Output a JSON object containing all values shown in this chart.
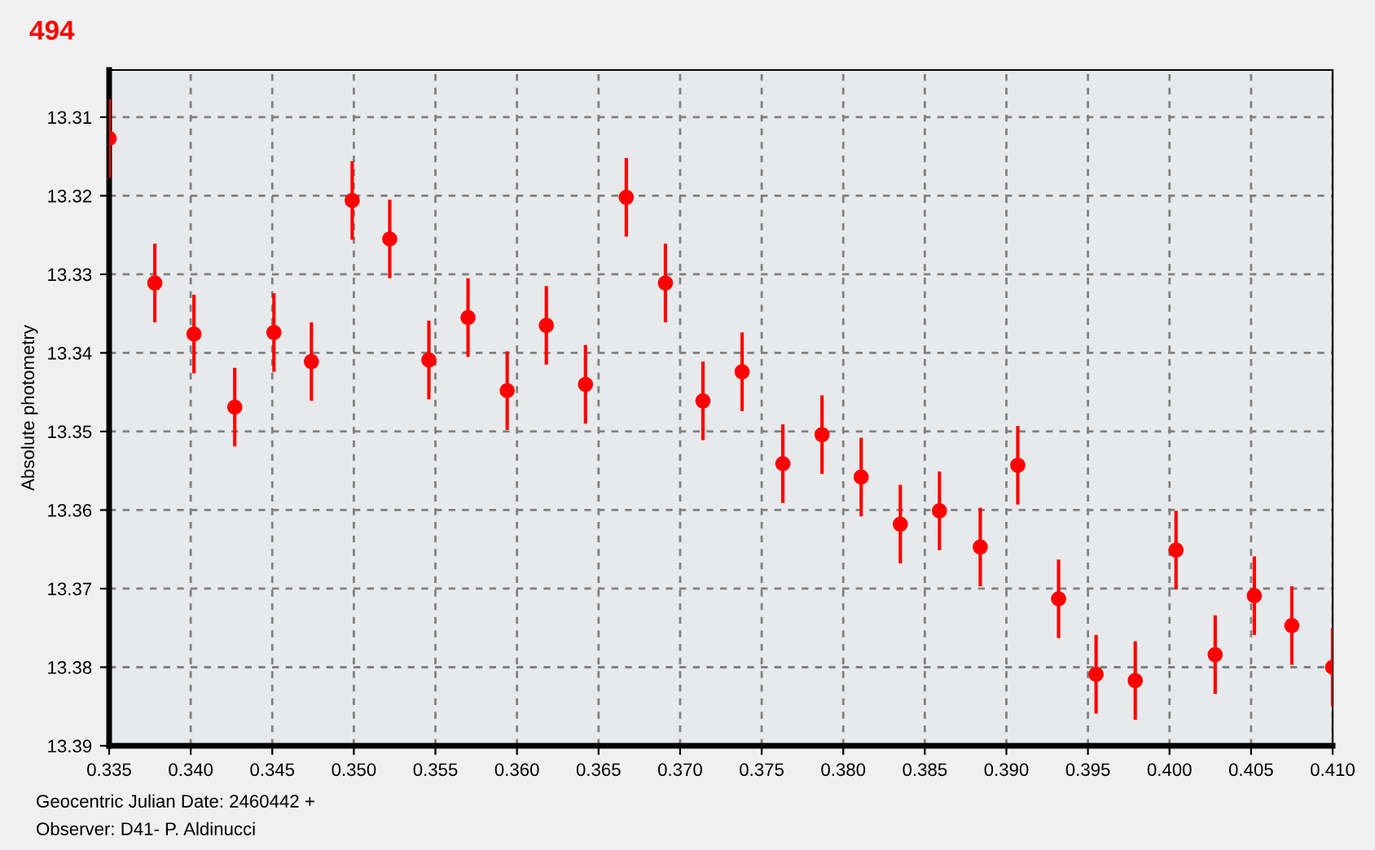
{
  "chart_data": {
    "type": "scatter",
    "title": "494",
    "ylabel": "Absolute photometry",
    "annotations": [
      "Geocentric Julian Date: 2460442 +",
      "Observer: D41- P. Aldinucci"
    ],
    "x": [
      0.335,
      0.3378,
      0.3402,
      0.3427,
      0.3451,
      0.3474,
      0.3499,
      0.3522,
      0.3546,
      0.357,
      0.3594,
      0.3618,
      0.3642,
      0.3667,
      0.3691,
      0.3714,
      0.3738,
      0.3763,
      0.3787,
      0.3811,
      0.3835,
      0.3859,
      0.3884,
      0.3907,
      0.3932,
      0.3955,
      0.3979,
      0.4004,
      0.4028,
      0.4052,
      0.4075,
      0.41
    ],
    "series": [
      {
        "color": "#ff0000",
        "values": [
          13.3127,
          13.3311,
          13.3376,
          13.3469,
          13.3374,
          13.3411,
          13.3206,
          13.3255,
          13.3409,
          13.3355,
          13.3448,
          13.3365,
          13.344,
          13.3202,
          13.3311,
          13.3461,
          13.3424,
          13.3541,
          13.3504,
          13.3558,
          13.3618,
          13.3601,
          13.3647,
          13.3543,
          13.3713,
          13.3809,
          13.3817,
          13.3651,
          13.3784,
          13.3709,
          13.3747,
          13.38
        ],
        "errors": [
          0.005,
          0.005,
          0.005,
          0.005,
          0.005,
          0.005,
          0.005,
          0.005,
          0.005,
          0.005,
          0.005,
          0.005,
          0.005,
          0.005,
          0.005,
          0.005,
          0.005,
          0.005,
          0.005,
          0.005,
          0.005,
          0.005,
          0.005,
          0.005,
          0.005,
          0.005,
          0.005,
          0.005,
          0.005,
          0.005,
          0.005,
          0.005
        ]
      }
    ],
    "xlim": [
      0.335,
      0.41
    ],
    "xticks": [
      {
        "value": 0.335,
        "label": "0.335"
      },
      {
        "value": 0.34,
        "label": "0.340"
      },
      {
        "value": 0.345,
        "label": "0.345"
      },
      {
        "value": 0.35,
        "label": "0.350"
      },
      {
        "value": 0.355,
        "label": "0.355"
      },
      {
        "value": 0.36,
        "label": "0.360"
      },
      {
        "value": 0.365,
        "label": "0.365"
      },
      {
        "value": 0.37,
        "label": "0.370"
      },
      {
        "value": 0.375,
        "label": "0.375"
      },
      {
        "value": 0.38,
        "label": "0.380"
      },
      {
        "value": 0.385,
        "label": "0.385"
      },
      {
        "value": 0.39,
        "label": "0.390"
      },
      {
        "value": 0.395,
        "label": "0.395"
      },
      {
        "value": 0.4,
        "label": "0.400"
      },
      {
        "value": 0.405,
        "label": "0.405"
      },
      {
        "value": 0.41,
        "label": "0.410"
      }
    ],
    "ylim": [
      13.39,
      13.304
    ],
    "yticks": [
      {
        "value": 13.31,
        "label": "13.31"
      },
      {
        "value": 13.32,
        "label": "13.32"
      },
      {
        "value": 13.33,
        "label": "13.33"
      },
      {
        "value": 13.34,
        "label": "13.34"
      },
      {
        "value": 13.35,
        "label": "13.35"
      },
      {
        "value": 13.36,
        "label": "13.36"
      },
      {
        "value": 13.37,
        "label": "13.37"
      },
      {
        "value": 13.38,
        "label": "13.38"
      },
      {
        "value": 13.39,
        "label": "13.39"
      }
    ],
    "grid": true,
    "marker": "circle"
  }
}
